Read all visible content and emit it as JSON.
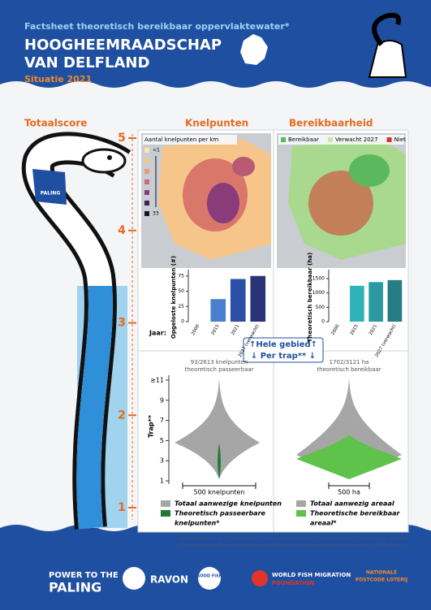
{
  "header": {
    "subtitle": "Factsheet theoretisch bereikbaar oppervlaktewater*",
    "title": [
      "HOOGHEEMRAADSCHAP",
      "VAN DELFLAND"
    ],
    "situation": "Situatie 2021"
  },
  "sections": [
    "Totaalscore",
    "Knelpunten",
    "Bereikbaarheid"
  ],
  "score": {
    "ticks": [
      5,
      4,
      3,
      2,
      1
    ],
    "ylim": [
      1,
      5
    ],
    "value": 3.4,
    "scarf_label": "PALING"
  },
  "knelpunten_map": {
    "legend_title": "Aantal knelpunten per km",
    "min_label": "<1",
    "max_label": "33"
  },
  "bereik_map": {
    "legend": [
      {
        "name": "Bereikbaar",
        "color": "#5cb85c"
      },
      {
        "name": "Verwacht 2027",
        "color": "#c8e6a8"
      },
      {
        "name": "Niet",
        "color": "#d9342b"
      }
    ]
  },
  "chart_data": [
    {
      "type": "bar",
      "ylabel": "Opgeloste knelpunten (#)",
      "categories": [
        "2000",
        "2015",
        "2021",
        "2027 (verwacht)"
      ],
      "values": [
        0,
        37,
        70,
        75
      ],
      "colors": [
        "#7fa6e0",
        "#4a7fd0",
        "#2b4fa6",
        "#2a3278"
      ],
      "ylim": [
        0,
        80
      ],
      "yticks": [
        0,
        25,
        50,
        75
      ]
    },
    {
      "type": "bar",
      "ylabel": "Theoretisch bereikbaar (ha)",
      "categories": [
        "2000",
        "2015",
        "2021",
        "2027 (verwacht)"
      ],
      "values": [
        0,
        1250,
        1380,
        1450
      ],
      "colors": [
        "#6fd0d4",
        "#2fb3b8",
        "#2a9aa0",
        "#257c85"
      ],
      "ylim": [
        0,
        1700
      ],
      "yticks": [
        0,
        500,
        1000,
        1500
      ]
    }
  ],
  "x_axis_label": "Jaar:",
  "toggle": [
    "↑Hele gebied↑",
    "↓ Per trap** ↓"
  ],
  "per_trap": {
    "axis_label": "Trap**",
    "tlim": [
      1,
      11
    ],
    "ticks": [
      {
        "value": 11,
        "label": "≥11"
      },
      9,
      7,
      5,
      3,
      1
    ],
    "left_caption": [
      "93/2613 knelpunten",
      "theoretisch passeerbaar"
    ],
    "right_caption": [
      "1702/3121 ha",
      "theoretisch bereikbaar"
    ],
    "left_scale": "500 knelpunten",
    "right_scale": "500 ha",
    "left_legend": [
      "Totaal aanwezige knelpunten",
      "Theoretisch passeerbare",
      "knelpunten*"
    ],
    "right_legend": [
      "Totaal aanwezig areaal",
      "Theoretische bereikbaar",
      "areaal*"
    ]
  },
  "footnotes": [
    "* Alle vispassages zijn als 100% passeerbaar voor de paling meegenomen. Exacte percentage is onbekend, maar zeker lager.",
    "** Een trap is een niveau van knelpunt. Het eerste knelpunt dat de paling tegenkomt vanuit zee is Trap 1, het 2e Trap 2, etc."
  ],
  "logos": [
    "POWER TO THE",
    "PALING",
    "RAVON",
    "GOOD FISH",
    "WORLD FISH MIGRATION",
    "FOUNDATION",
    "NATIONALE",
    "POSTCODE LOTERIJ"
  ]
}
